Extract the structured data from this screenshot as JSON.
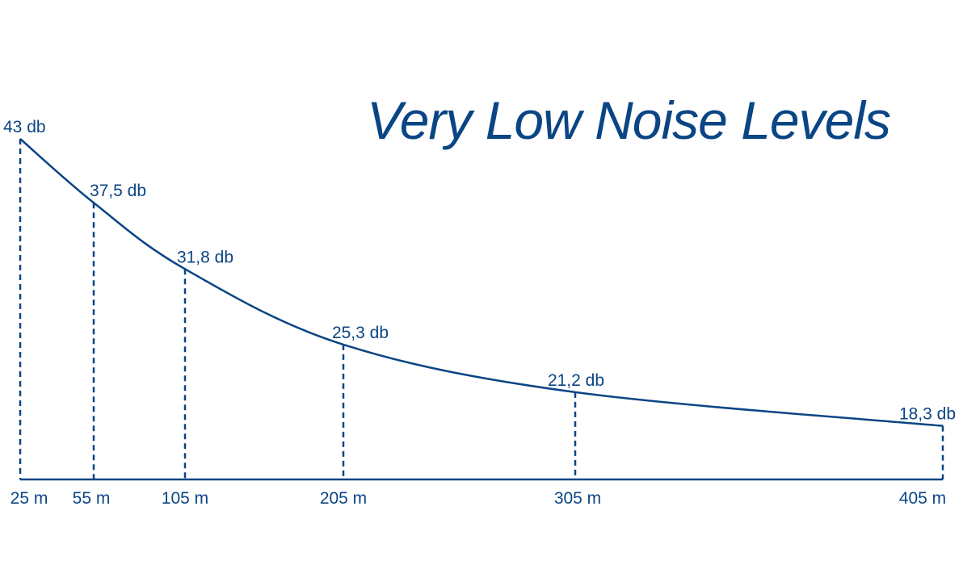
{
  "colors": {
    "primary": "#0a4584",
    "background": "#ffffff"
  },
  "chart_data": {
    "type": "line",
    "title": "Very Low Noise Levels",
    "xlabel": "",
    "ylabel": "",
    "x": [
      25,
      55,
      105,
      205,
      305,
      405
    ],
    "values": [
      43,
      37.5,
      31.8,
      25.3,
      21.2,
      18.3
    ],
    "tick_labels": [
      "25 m",
      "55 m",
      "105 m",
      "205 m",
      "305 m",
      "405 m"
    ],
    "data_labels": [
      "43 db",
      "37,5 db",
      "31,8 db",
      "25,3 db",
      "21,2 db",
      "18,3 db"
    ],
    "grid": false,
    "legend": "none"
  }
}
